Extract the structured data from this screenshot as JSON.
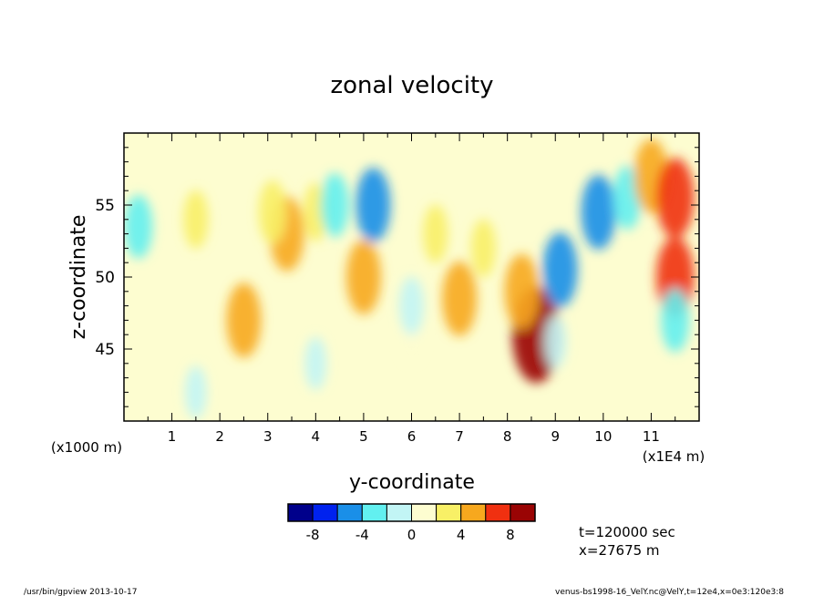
{
  "chart_data": {
    "type": "heatmap",
    "title": "zonal velocity",
    "xlabel": "y-coordinate",
    "ylabel": "z-coordinate",
    "x_unit_label": "(x1E4 m)",
    "y_unit_label": "(x1000 m)",
    "xlim": [
      0,
      12
    ],
    "ylim": [
      40,
      60
    ],
    "x_ticks": [
      "1",
      "2",
      "3",
      "4",
      "5",
      "6",
      "7",
      "8",
      "9",
      "10",
      "11"
    ],
    "y_ticks": [
      "45",
      "50",
      "55"
    ],
    "colorbar": {
      "levels": [
        -10,
        -8,
        -6,
        -4,
        -2,
        0,
        2,
        4,
        6,
        8,
        10
      ],
      "tick_labels": [
        "-8",
        "-4",
        "0",
        "4",
        "8"
      ],
      "colors": [
        "#00008b",
        "#0022ee",
        "#1a8fe8",
        "#62f0f0",
        "#c2f5f5",
        "#fdfdd0",
        "#f8f066",
        "#f7a81e",
        "#f03010",
        "#9a0404"
      ]
    },
    "features": [
      {
        "y": 3.4,
        "z": 53.0,
        "value": 5.0
      },
      {
        "y": 3.1,
        "z": 54.5,
        "value": 3.0
      },
      {
        "y": 1.5,
        "z": 54.0,
        "value": 2.0
      },
      {
        "y": 4.0,
        "z": 54.5,
        "value": 2.0
      },
      {
        "y": 4.4,
        "z": 55.0,
        "value": -3.0
      },
      {
        "y": 5.2,
        "z": 55.0,
        "value": -5.0
      },
      {
        "y": 5.0,
        "z": 50.0,
        "value": 5.0
      },
      {
        "y": 7.0,
        "z": 48.5,
        "value": 5.0
      },
      {
        "y": 8.6,
        "z": 46.0,
        "value": 9.0
      },
      {
        "y": 8.3,
        "z": 49.0,
        "value": 5.0
      },
      {
        "y": 9.1,
        "z": 50.5,
        "value": -5.0
      },
      {
        "y": 9.9,
        "z": 54.5,
        "value": -5.0
      },
      {
        "y": 10.5,
        "z": 55.5,
        "value": -3.0
      },
      {
        "y": 11.0,
        "z": 57.0,
        "value": 5.0
      },
      {
        "y": 11.5,
        "z": 55.5,
        "value": 6.0
      },
      {
        "y": 11.5,
        "z": 50.0,
        "value": 6.0
      },
      {
        "y": 0.3,
        "z": 53.5,
        "value": -3.0
      },
      {
        "y": 6.5,
        "z": 53.0,
        "value": 2.0
      },
      {
        "y": 7.5,
        "z": 52.0,
        "value": 2.0
      },
      {
        "y": 2.5,
        "z": 47.0,
        "value": 5.0
      },
      {
        "y": 6.0,
        "z": 46.0,
        "value": 1.0
      },
      {
        "y": 9.0,
        "z": 45.5,
        "value": -1.0
      },
      {
        "y": 4.0,
        "z": 44.0,
        "value": -1.0
      },
      {
        "y": 1.5,
        "z": 42.0,
        "value": -1.0
      },
      {
        "y": 6.0,
        "z": 48.0,
        "value": -2.0
      },
      {
        "y": 11.5,
        "z": 47.0,
        "value": -3.0
      }
    ],
    "annotations": [
      "t=120000 sec",
      "x=27675 m"
    ]
  },
  "footer": {
    "left": "/usr/bin/gpview  2013-10-17",
    "right": "venus-bs1998-16_VelY.nc@VelY,t=12e4,x=0e3:120e3:8"
  }
}
